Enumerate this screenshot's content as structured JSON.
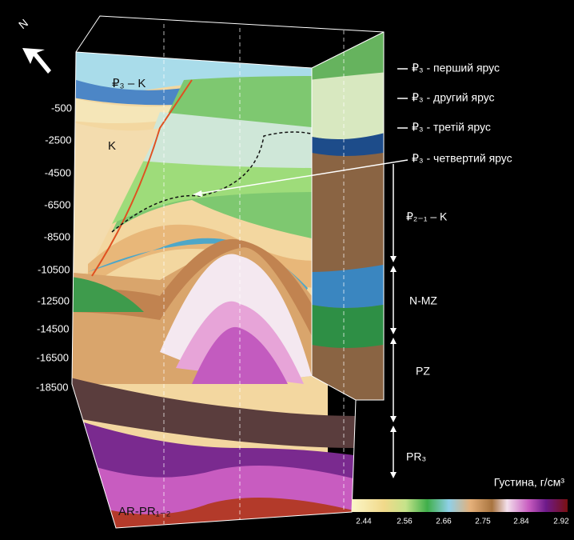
{
  "compass": "N",
  "depth_labels": [
    "-500",
    "-2500",
    "-4500",
    "-6500",
    "-8500",
    "-10500",
    "-12500",
    "-14500",
    "-16500",
    "-18500"
  ],
  "units_in_figure": [
    "₽₃ – K",
    "K",
    "AR-PR₁₋₂"
  ],
  "tiers": [
    "₽₃ - перший ярус",
    "₽₃ - другий ярус",
    "₽₃ - третій ярус",
    "₽₃ - четвертий ярус"
  ],
  "sections": [
    "₽₂₋₁ – K",
    "N-MZ",
    "PZ",
    "PR₃"
  ],
  "colorbar": {
    "title": "Густина, г/см³",
    "ticks": [
      "2.44",
      "2.56",
      "2.66",
      "2.75",
      "2.84",
      "2.92"
    ]
  }
}
